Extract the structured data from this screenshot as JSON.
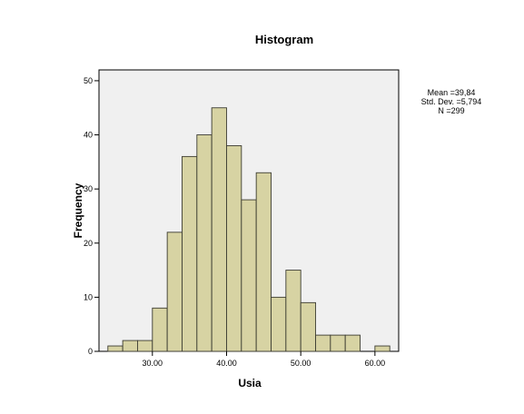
{
  "chart_data": {
    "type": "bar",
    "title": "Histogram",
    "xlabel": "Usia",
    "ylabel": "Frequency",
    "xlim": [
      22.8,
      63.2
    ],
    "ylim": [
      0,
      52
    ],
    "x_ticks": [
      30,
      40,
      50,
      60
    ],
    "x_tick_labels": [
      "30.00",
      "40.00",
      "50.00",
      "60.00"
    ],
    "y_ticks": [
      0,
      10,
      20,
      30,
      40,
      50
    ],
    "y_tick_labels": [
      "0",
      "10",
      "20",
      "30",
      "40",
      "50"
    ],
    "bin_width": 2,
    "bins": [
      {
        "start": 24,
        "end": 26,
        "count": 1
      },
      {
        "start": 26,
        "end": 28,
        "count": 2
      },
      {
        "start": 28,
        "end": 30,
        "count": 2
      },
      {
        "start": 30,
        "end": 32,
        "count": 8
      },
      {
        "start": 32,
        "end": 34,
        "count": 22
      },
      {
        "start": 34,
        "end": 36,
        "count": 36
      },
      {
        "start": 36,
        "end": 38,
        "count": 40
      },
      {
        "start": 38,
        "end": 40,
        "count": 45
      },
      {
        "start": 40,
        "end": 42,
        "count": 38
      },
      {
        "start": 42,
        "end": 44,
        "count": 28
      },
      {
        "start": 44,
        "end": 46,
        "count": 33
      },
      {
        "start": 46,
        "end": 48,
        "count": 10
      },
      {
        "start": 48,
        "end": 50,
        "count": 15
      },
      {
        "start": 50,
        "end": 52,
        "count": 9
      },
      {
        "start": 52,
        "end": 54,
        "count": 3
      },
      {
        "start": 54,
        "end": 56,
        "count": 3
      },
      {
        "start": 56,
        "end": 58,
        "count": 3
      },
      {
        "start": 60,
        "end": 62,
        "count": 1
      }
    ],
    "stats": {
      "mean": "Mean =39,84",
      "std_dev": "Std. Dev. =5,794",
      "n": "N =299"
    },
    "colors": {
      "bar_fill": "#d7d3a3",
      "bar_stroke": "#3c3c32",
      "plot_background": "#f0f0f0"
    },
    "grid": false,
    "legend": "none"
  }
}
